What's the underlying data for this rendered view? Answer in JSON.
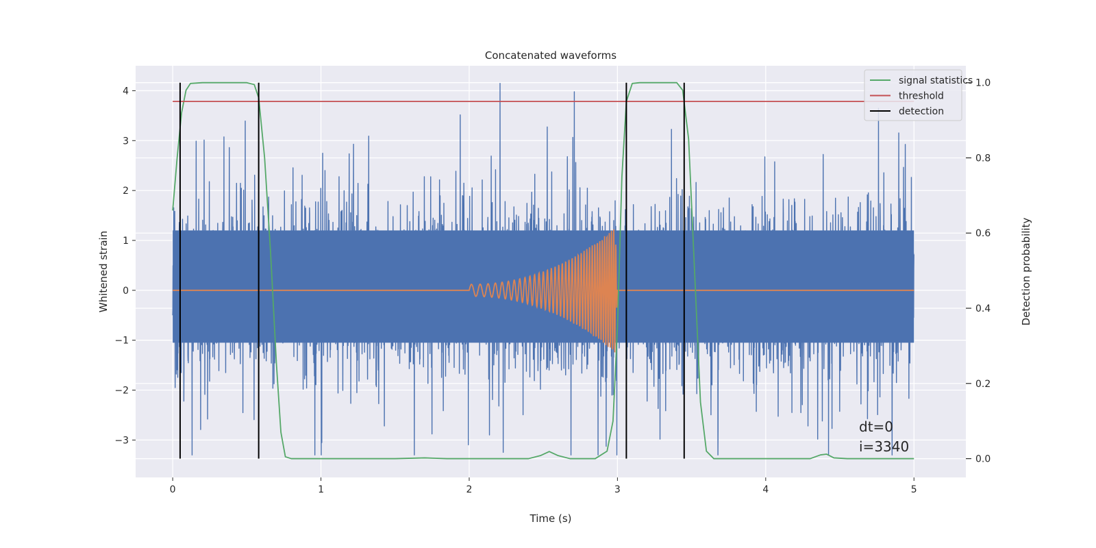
{
  "chart_data": {
    "type": "line",
    "title": "Concatenated waveforms",
    "xlabel": "Time (s)",
    "ylabel": "Whitened strain",
    "ylabel_right": "Detection probability",
    "xlim": [
      -0.25,
      5.35
    ],
    "ylim": [
      -3.75,
      4.5
    ],
    "ylim_right": [
      -0.05,
      1.045
    ],
    "xticks": [
      0,
      1,
      2,
      3,
      4,
      5
    ],
    "yticks": [
      -3,
      -2,
      -1,
      0,
      1,
      2,
      3,
      4
    ],
    "yticks_right": [
      0.0,
      0.2,
      0.4,
      0.6,
      0.8,
      1.0
    ],
    "grid": true,
    "legend_position": "top-right",
    "series": [
      {
        "key": "strain",
        "color": "#4c72b0",
        "axis": "left",
        "generator": "noise",
        "x_range": [
          0,
          5
        ],
        "sample_rate_hz": 1024,
        "approx_amplitude_range": [
          -3.3,
          4.2
        ]
      },
      {
        "key": "template",
        "color": "#dd8452",
        "axis": "left",
        "generator": "chirp",
        "x_range": [
          0,
          5
        ],
        "chirp_start": 2.0,
        "chirp_end": 3.0,
        "chirp_peak_amplitude": 1.3
      },
      {
        "key": "signal_statistics",
        "name": "signal statistics",
        "color": "#55a868",
        "axis": "right",
        "points": [
          [
            0.0,
            0.66
          ],
          [
            0.03,
            0.8
          ],
          [
            0.06,
            0.92
          ],
          [
            0.09,
            0.98
          ],
          [
            0.12,
            0.998
          ],
          [
            0.2,
            1.0
          ],
          [
            0.5,
            1.0
          ],
          [
            0.55,
            0.995
          ],
          [
            0.58,
            0.96
          ],
          [
            0.62,
            0.8
          ],
          [
            0.66,
            0.55
          ],
          [
            0.7,
            0.25
          ],
          [
            0.73,
            0.07
          ],
          [
            0.76,
            0.005
          ],
          [
            0.8,
            0.0
          ],
          [
            1.5,
            0.0
          ],
          [
            1.7,
            0.002
          ],
          [
            1.85,
            0.0
          ],
          [
            2.4,
            0.0
          ],
          [
            2.48,
            0.008
          ],
          [
            2.54,
            0.019
          ],
          [
            2.6,
            0.008
          ],
          [
            2.68,
            0.0
          ],
          [
            2.85,
            0.0
          ],
          [
            2.93,
            0.02
          ],
          [
            2.97,
            0.1
          ],
          [
            3.0,
            0.35
          ],
          [
            3.03,
            0.75
          ],
          [
            3.06,
            0.95
          ],
          [
            3.1,
            0.998
          ],
          [
            3.15,
            1.0
          ],
          [
            3.4,
            1.0
          ],
          [
            3.44,
            0.98
          ],
          [
            3.48,
            0.85
          ],
          [
            3.52,
            0.5
          ],
          [
            3.56,
            0.15
          ],
          [
            3.6,
            0.02
          ],
          [
            3.65,
            0.0
          ],
          [
            4.3,
            0.0
          ],
          [
            4.37,
            0.01
          ],
          [
            4.41,
            0.012
          ],
          [
            4.46,
            0.002
          ],
          [
            4.55,
            0.0
          ],
          [
            5.0,
            0.0
          ]
        ]
      },
      {
        "key": "threshold",
        "name": "threshold",
        "color": "#c44e52",
        "axis": "right",
        "points": [
          [
            0.0,
            0.95
          ],
          [
            5.0,
            0.95
          ]
        ]
      },
      {
        "key": "detection",
        "name": "detection",
        "color": "#000000",
        "axis": "right",
        "vertical_lines_x": [
          0.05,
          0.58,
          3.06,
          3.45
        ],
        "y_range": [
          0.0,
          1.0
        ]
      }
    ],
    "legend": [
      "signal statistics",
      "threshold",
      "detection"
    ],
    "annotations": [
      "dt=0",
      "i=3340"
    ]
  }
}
